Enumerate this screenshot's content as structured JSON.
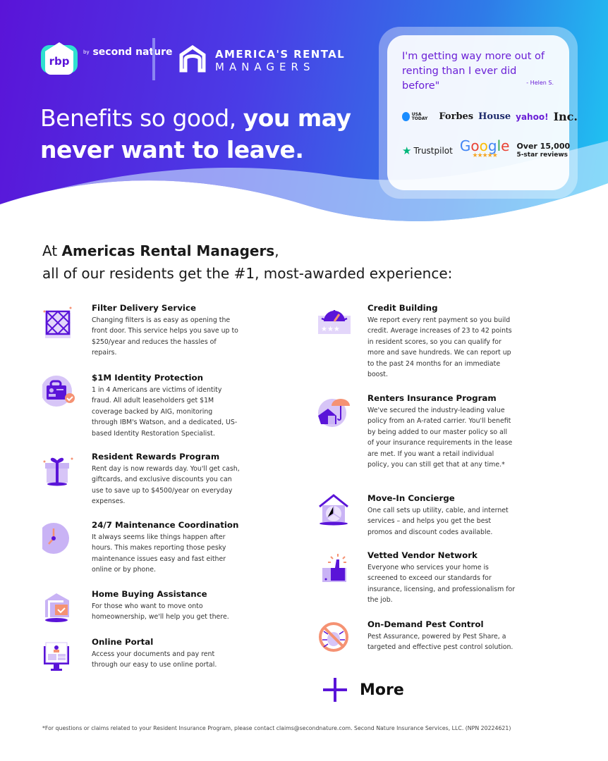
{
  "brand": {
    "rbp": "rbp",
    "by": "by",
    "second_nature": "second nature",
    "arm_line1": "AMERICA'S RENTAL",
    "arm_line2": "MANAGERS"
  },
  "hero": {
    "headline_regular": "Benefits so good, ",
    "headline_bold1": "you may",
    "headline_bold2": "never want to leave."
  },
  "testimonial": {
    "quote": "I'm getting way more out of renting than I ever did before\"",
    "author": "- Helen S.",
    "press": [
      "USA TODAY",
      "Forbes",
      "House",
      "yahoo!",
      "Inc."
    ],
    "trustpilot": "Trustpilot",
    "google": "Google",
    "stars": "★★★★★",
    "reviews_count": "Over 15,000",
    "reviews_label": "5-star reviews"
  },
  "intro": {
    "prefix": "At ",
    "company": "Americas Rental Managers",
    "suffix": ",",
    "line2": "all of our residents get the #1, most-awarded experience:"
  },
  "left_items": [
    {
      "title": "Filter Delivery Service",
      "body": "Changing filters is as easy as opening the front door. This service helps you save up to $250/year and reduces the hassles of repairs.",
      "icon": "filter-icon"
    },
    {
      "title": "$1M Identity Protection",
      "body": "1 in 4 Americans are victims of identity fraud. All adult leaseholders get $1M coverage backed by AIG, monitoring through IBM's Watson, and a dedicated, US-based Identity Restoration Specialist.",
      "icon": "id-badge-icon"
    },
    {
      "title": "Resident Rewards Program",
      "body": "Rent day is now rewards day. You'll get cash, giftcards, and exclusive discounts you can use to save up to $4500/year on everyday expenses.",
      "icon": "gift-icon"
    },
    {
      "title": "24/7 Maintenance Coordination",
      "body": "It always seems like things happen after hours. This makes reporting those pesky maintenance issues easy and fast either online or by phone.",
      "icon": "clock-icon"
    },
    {
      "title": "Home Buying Assistance",
      "body": "For those who want to move onto homeownership, we'll help you get there.",
      "icon": "home-sign-icon"
    },
    {
      "title": "Online Portal",
      "body": "Access your documents and pay rent through our easy to use online portal.",
      "icon": "monitor-icon"
    }
  ],
  "right_items": [
    {
      "title": "Credit Building",
      "body": "We report every rent payment so you build credit. Average increases of 23 to 42 points in resident scores, so you can qualify for more and save hundreds. We can report up to the past 24 months for an immediate boost.",
      "icon": "credit-gauge-icon"
    },
    {
      "title": "Renters Insurance Program",
      "body": "We've secured the industry-leading value policy from an A-rated carrier. You'll benefit by being added to our master policy so all of your insurance requirements in the lease are met. If you want a retail individual policy, you can still get that at any time.*",
      "icon": "umbrella-house-icon"
    },
    {
      "title": "Move-In Concierge",
      "body": "One call sets up utility, cable, and internet services – and helps you get the best promos and discount codes available.",
      "icon": "house-utilities-icon"
    },
    {
      "title": "Vetted Vendor Network",
      "body": "Everyone who services your home is screened to exceed our standards for insurance, licensing, and professionalism for the job.",
      "icon": "thumbs-up-icon"
    },
    {
      "title": "On-Demand Pest Control",
      "body": "Pest Assurance, powered by Pest Share, a targeted and effective pest control solution.",
      "icon": "no-bug-icon"
    }
  ],
  "more_label": "More",
  "footer": "*For questions or claims related to your Resident Insurance Program, please contact claims@secondnature.com. Second Nature Insurance Services, LLC. (NPN 20224621)",
  "colors": {
    "purple": "#5a14d8",
    "lavender": "#c9b3f5",
    "coral": "#f59273",
    "cyan": "#1ec8f2"
  }
}
